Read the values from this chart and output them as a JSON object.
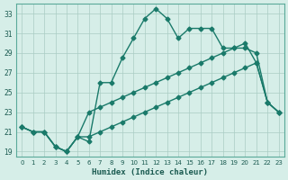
{
  "xlabel": "Humidex (Indice chaleur)",
  "ylabel": "",
  "background_color": "#d6eee8",
  "grid_color": "#aaccc4",
  "line_color": "#1a7a6a",
  "xlim": [
    -0.5,
    23.5
  ],
  "ylim": [
    18.5,
    34
  ],
  "xticks": [
    0,
    1,
    2,
    3,
    4,
    5,
    6,
    7,
    8,
    9,
    10,
    11,
    12,
    13,
    14,
    15,
    16,
    17,
    18,
    19,
    20,
    21,
    22,
    23
  ],
  "yticks": [
    19,
    21,
    23,
    25,
    27,
    29,
    31,
    33
  ],
  "series1": [
    21.5,
    21.0,
    21.0,
    19.5,
    19.0,
    20.5,
    20.0,
    26.0,
    26.0,
    28.5,
    30.5,
    32.5,
    33.5,
    32.5,
    30.5,
    31.5,
    31.5,
    31.5,
    29.5,
    29.5,
    30.0,
    28.0,
    24.0,
    23.0
  ],
  "series2": [
    21.5,
    21.0,
    21.0,
    19.5,
    19.0,
    20.5,
    23.0,
    23.5,
    24.0,
    24.5,
    25.0,
    25.5,
    26.0,
    26.5,
    27.0,
    27.5,
    28.0,
    28.5,
    29.0,
    29.5,
    29.5,
    29.0,
    24.0,
    23.0
  ],
  "series3": [
    21.5,
    21.0,
    21.0,
    19.5,
    19.0,
    20.5,
    20.5,
    21.0,
    21.5,
    22.0,
    22.5,
    23.0,
    23.5,
    24.0,
    24.5,
    25.0,
    25.5,
    26.0,
    26.5,
    27.0,
    27.5,
    28.0,
    24.0,
    23.0
  ]
}
